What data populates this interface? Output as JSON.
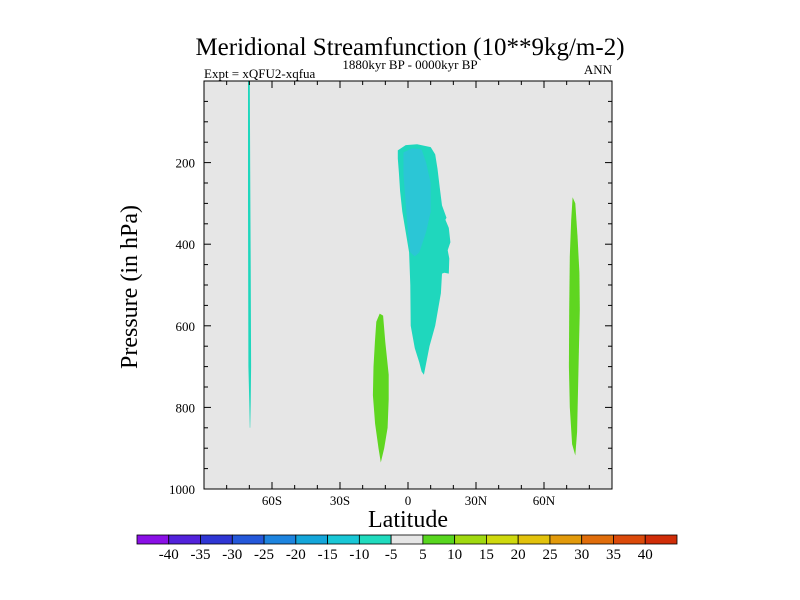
{
  "chart_data": {
    "type": "contour",
    "title": "Meridional Streamfunction (10**9kg/m-2)",
    "subtitle_left": "Expt = xQFU2-xqfua",
    "subtitle_center": "1880kyr BP - 0000kyr BP",
    "subtitle_right": "ANN",
    "xlabel": "Latitude",
    "ylabel": "Pressure (in hPa)",
    "xlim": [
      -90,
      90
    ],
    "ylim": [
      1000,
      0
    ],
    "x_ticks": [
      {
        "value": -60,
        "label": "60S"
      },
      {
        "value": -30,
        "label": "30S"
      },
      {
        "value": 0,
        "label": "0"
      },
      {
        "value": 30,
        "label": "30N"
      },
      {
        "value": 60,
        "label": "60N"
      }
    ],
    "y_ticks": [
      {
        "value": 200,
        "label": "200"
      },
      {
        "value": 400,
        "label": "400"
      },
      {
        "value": 600,
        "label": "600"
      },
      {
        "value": 800,
        "label": "800"
      },
      {
        "value": 1000,
        "label": "1000"
      }
    ],
    "background_color": "#e6e6e6",
    "regions": [
      {
        "name": "southern-polar-cell-anomaly",
        "level": -10,
        "color": "#1fd7bd",
        "polygon": [
          [
            -70.6,
            0
          ],
          [
            -69.8,
            0
          ],
          [
            -69.6,
            220
          ],
          [
            -69.4,
            450
          ],
          [
            -69.2,
            700
          ],
          [
            -69.4,
            790
          ],
          [
            -69.6,
            850
          ],
          [
            -69.8,
            850
          ],
          [
            -70.0,
            790
          ],
          [
            -70.4,
            700
          ],
          [
            -70.5,
            500
          ],
          [
            -70.6,
            300
          ],
          [
            -70.6,
            60
          ]
        ]
      },
      {
        "name": "tropical-negative-cell",
        "level": -10,
        "color": "#1fd7bd",
        "polygon": [
          [
            -4.5,
            170
          ],
          [
            -1,
            157
          ],
          [
            4,
            155
          ],
          [
            10,
            162
          ],
          [
            12,
            180
          ],
          [
            13,
            215
          ],
          [
            14,
            260
          ],
          [
            15,
            305
          ],
          [
            17,
            335
          ],
          [
            16.5,
            340
          ],
          [
            18,
            360
          ],
          [
            18.7,
            395
          ],
          [
            17.5,
            415
          ],
          [
            18.2,
            435
          ],
          [
            18,
            472
          ],
          [
            16,
            470
          ],
          [
            15,
            472
          ],
          [
            14.5,
            520
          ],
          [
            12,
            600
          ],
          [
            9.5,
            650
          ],
          [
            7,
            720
          ],
          [
            6,
            712
          ],
          [
            5,
            690
          ],
          [
            3,
            655
          ],
          [
            1.2,
            600
          ],
          [
            1,
            500
          ],
          [
            0.5,
            420
          ],
          [
            -1,
            370
          ],
          [
            -2.5,
            320
          ],
          [
            -3.5,
            270
          ],
          [
            -4,
            225
          ],
          [
            -4.5,
            190
          ]
        ]
      },
      {
        "name": "tropical-negative-core",
        "level": -5,
        "color": "#2bc6d6",
        "polygon": [
          [
            -2,
            175
          ],
          [
            2,
            165
          ],
          [
            6,
            168
          ],
          [
            8,
            200
          ],
          [
            10,
            250
          ],
          [
            10,
            320
          ],
          [
            8,
            370
          ],
          [
            5,
            420
          ],
          [
            3,
            430
          ],
          [
            1,
            420
          ],
          [
            0,
            370
          ],
          [
            -1,
            300
          ],
          [
            -2,
            230
          ]
        ]
      },
      {
        "name": "southern-hadley-positive",
        "level": 5,
        "color": "#5fd620",
        "polygon": [
          [
            -14,
            590
          ],
          [
            -12.5,
            570
          ],
          [
            -11,
            575
          ],
          [
            -10,
            640
          ],
          [
            -8.5,
            720
          ],
          [
            -8.5,
            780
          ],
          [
            -9,
            850
          ],
          [
            -10.5,
            900
          ],
          [
            -12,
            935
          ],
          [
            -13,
            900
          ],
          [
            -14.5,
            840
          ],
          [
            -15.5,
            770
          ],
          [
            -15.2,
            700
          ],
          [
            -14.6,
            640
          ]
        ]
      },
      {
        "name": "northern-polar-positive",
        "level": 5,
        "color": "#5fd620",
        "polygon": [
          [
            72.6,
            285
          ],
          [
            73.8,
            300
          ],
          [
            74.8,
            380
          ],
          [
            75.6,
            470
          ],
          [
            75.8,
            560
          ],
          [
            75.4,
            660
          ],
          [
            75,
            760
          ],
          [
            74.6,
            860
          ],
          [
            73.8,
            918
          ],
          [
            72.4,
            890
          ],
          [
            71.4,
            800
          ],
          [
            71,
            700
          ],
          [
            71.1,
            560
          ],
          [
            71.4,
            430
          ],
          [
            72,
            340
          ]
        ]
      }
    ],
    "colorbar": {
      "labels": [
        "-40",
        "-35",
        "-30",
        "-25",
        "-20",
        "-15",
        "-10",
        "-5",
        "5",
        "10",
        "15",
        "20",
        "25",
        "30",
        "35",
        "40"
      ],
      "colors": [
        "#8a10e6",
        "#5222db",
        "#2f36d4",
        "#2458da",
        "#1d84df",
        "#14a6da",
        "#19c7d6",
        "#20dbbe",
        "#e6e6e6",
        "#58d61f",
        "#a0d910",
        "#cfd90e",
        "#e2c20c",
        "#e29a0b",
        "#e06d0b",
        "#db4a0a",
        "#d02d08"
      ]
    }
  }
}
